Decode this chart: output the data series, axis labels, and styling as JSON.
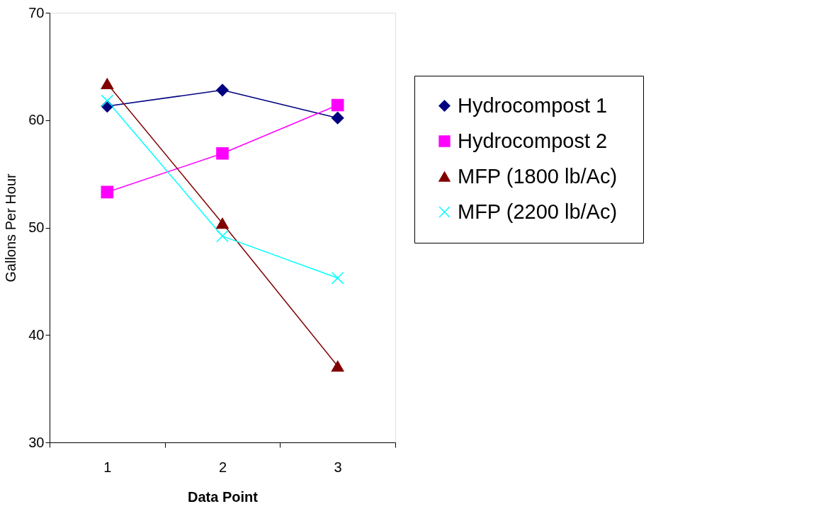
{
  "chart_data": {
    "type": "line",
    "xlabel": "Data Point",
    "ylabel": "Gallons Per Hour",
    "categories": [
      "1",
      "2",
      "3"
    ],
    "series": [
      {
        "name": "Hydrocompost 1",
        "color": "#000080",
        "marker": "diamond",
        "values": [
          61.3,
          62.8,
          60.2
        ]
      },
      {
        "name": "Hydrocompost 2",
        "color": "#ff00ff",
        "marker": "square",
        "values": [
          53.3,
          56.9,
          61.4
        ]
      },
      {
        "name": "MFP (1800 lb/Ac)",
        "color": "#800000",
        "marker": "triangle",
        "values": [
          63.4,
          50.4,
          37.1
        ]
      },
      {
        "name": "MFP  (2200 lb/Ac)",
        "color": "#00ffff",
        "marker": "cross",
        "values": [
          61.8,
          49.2,
          45.3
        ]
      }
    ],
    "ylim": [
      30,
      70
    ],
    "yticks": [
      30,
      40,
      50,
      60,
      70
    ],
    "grid": false,
    "legend": "right",
    "line_style": "solid"
  }
}
